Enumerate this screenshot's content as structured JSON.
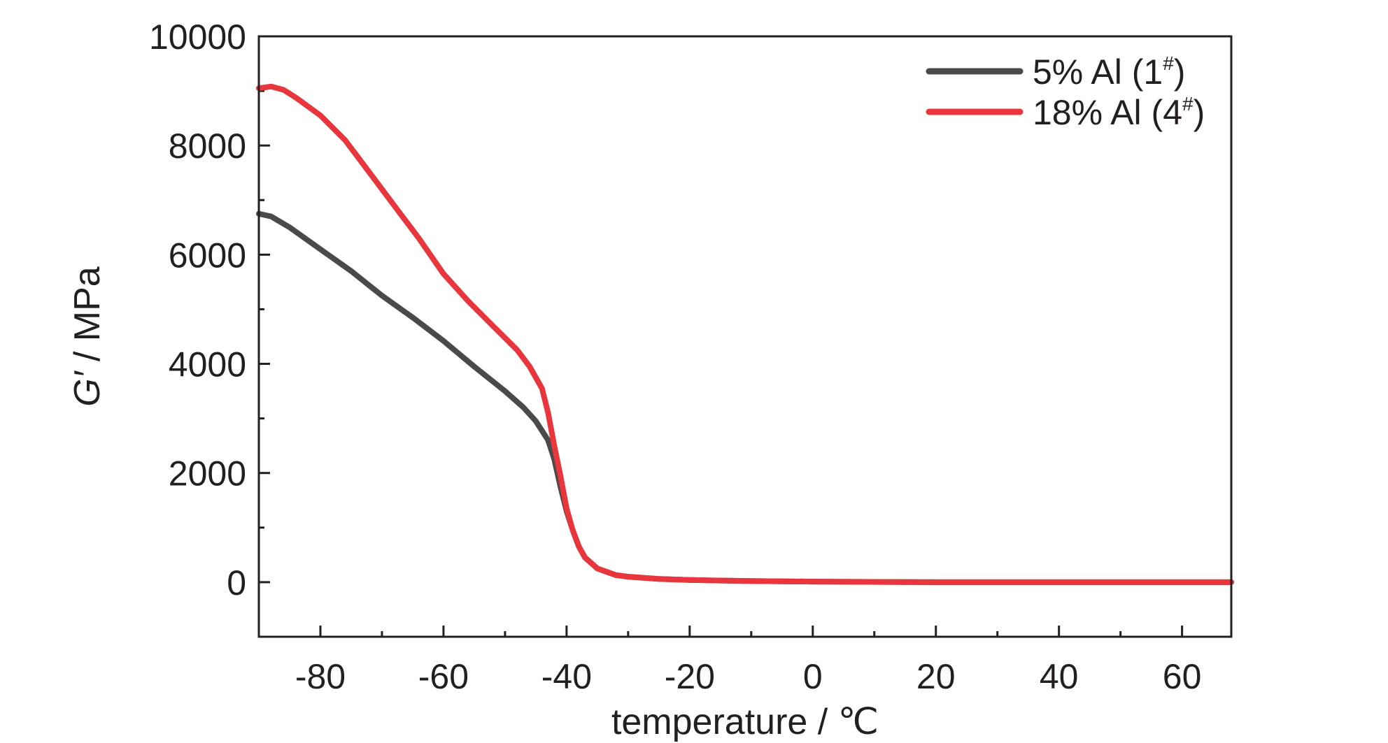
{
  "chart_data": {
    "type": "line",
    "xlabel": "temperature / ℃",
    "ylabel_italic": "G′",
    "ylabel_rest": " / MPa",
    "xlim": [
      -90,
      68
    ],
    "ylim": [
      -1000,
      10000
    ],
    "xticks": [
      -80,
      -60,
      -40,
      -20,
      0,
      20,
      40,
      60
    ],
    "yticks": [
      0,
      2000,
      4000,
      6000,
      8000,
      10000
    ],
    "legend_position": "top-right",
    "series": [
      {
        "name": "5% Al (1#)",
        "name_main": "5% Al (1",
        "name_sup": "#",
        "name_close": ")",
        "color": "#4a4a4a",
        "points": [
          [
            -90,
            6750
          ],
          [
            -88,
            6700
          ],
          [
            -85,
            6500
          ],
          [
            -80,
            6100
          ],
          [
            -75,
            5700
          ],
          [
            -70,
            5250
          ],
          [
            -65,
            4850
          ],
          [
            -60,
            4420
          ],
          [
            -55,
            3950
          ],
          [
            -50,
            3500
          ],
          [
            -47,
            3200
          ],
          [
            -45,
            2950
          ],
          [
            -43,
            2600
          ],
          [
            -42,
            2250
          ],
          [
            -41,
            1750
          ],
          [
            -40,
            1300
          ],
          [
            -39,
            950
          ],
          [
            -38,
            650
          ],
          [
            -37,
            450
          ],
          [
            -35,
            250
          ],
          [
            -32,
            130
          ],
          [
            -30,
            100
          ],
          [
            -25,
            60
          ],
          [
            -20,
            40
          ],
          [
            -10,
            20
          ],
          [
            0,
            10
          ],
          [
            20,
            0
          ],
          [
            40,
            0
          ],
          [
            60,
            0
          ],
          [
            68,
            0
          ]
        ]
      },
      {
        "name": "18% Al (4#)",
        "name_main": "18% Al (4",
        "name_sup": "#",
        "name_close": ")",
        "color": "#e8363c",
        "points": [
          [
            -90,
            9050
          ],
          [
            -88,
            9080
          ],
          [
            -86,
            9020
          ],
          [
            -84,
            8880
          ],
          [
            -80,
            8550
          ],
          [
            -76,
            8100
          ],
          [
            -72,
            7500
          ],
          [
            -68,
            6900
          ],
          [
            -64,
            6300
          ],
          [
            -60,
            5650
          ],
          [
            -56,
            5150
          ],
          [
            -52,
            4700
          ],
          [
            -48,
            4250
          ],
          [
            -46,
            3950
          ],
          [
            -44,
            3550
          ],
          [
            -43,
            3100
          ],
          [
            -42,
            2500
          ],
          [
            -41,
            1950
          ],
          [
            -40,
            1350
          ],
          [
            -39,
            950
          ],
          [
            -38,
            650
          ],
          [
            -37,
            450
          ],
          [
            -35,
            250
          ],
          [
            -32,
            130
          ],
          [
            -30,
            100
          ],
          [
            -25,
            60
          ],
          [
            -20,
            40
          ],
          [
            -10,
            20
          ],
          [
            0,
            10
          ],
          [
            20,
            0
          ],
          [
            40,
            0
          ],
          [
            60,
            0
          ],
          [
            68,
            0
          ]
        ]
      }
    ]
  }
}
